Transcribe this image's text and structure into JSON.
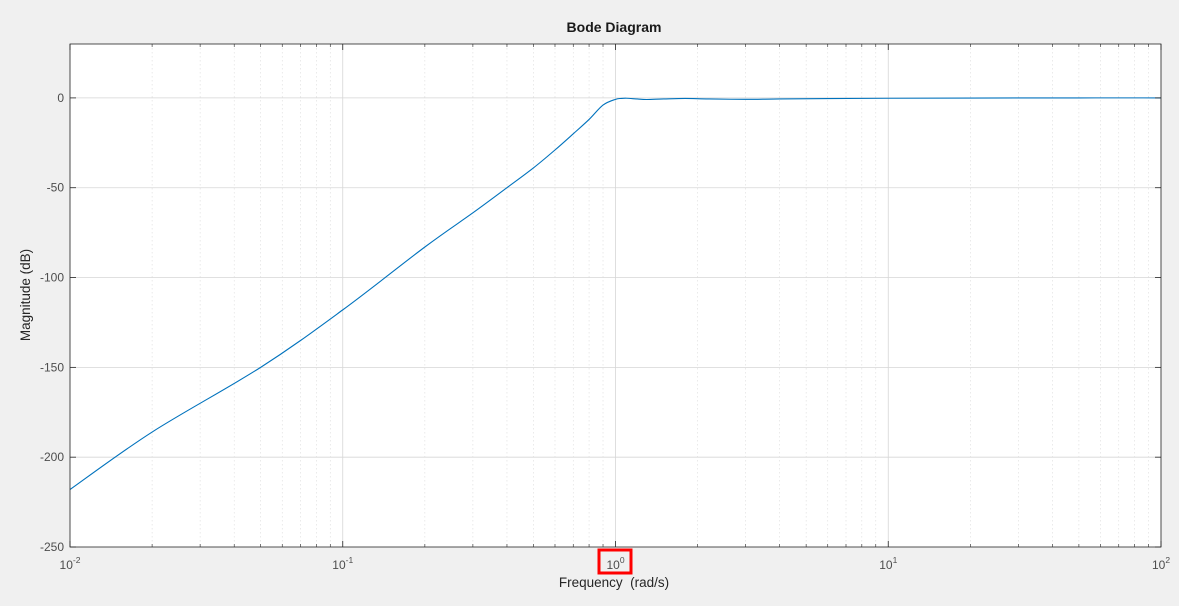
{
  "chart_data": {
    "type": "line",
    "title": "Bode Diagram",
    "xlabel": "Frequency  (rad/s)",
    "ylabel": "Magnitude (dB)",
    "xscale": "log",
    "xlim": [
      0.01,
      100
    ],
    "ylim": [
      -250,
      30
    ],
    "grid": true,
    "x_ticks": [
      {
        "value": 0.01,
        "base": "10",
        "exp": "-2"
      },
      {
        "value": 0.1,
        "base": "10",
        "exp": "-1"
      },
      {
        "value": 1,
        "base": "10",
        "exp": "0"
      },
      {
        "value": 10,
        "base": "10",
        "exp": "1"
      },
      {
        "value": 100,
        "base": "10",
        "exp": "2"
      }
    ],
    "y_ticks": [
      0,
      -50,
      -100,
      -150,
      -200,
      -250
    ],
    "y_tick_labels": [
      "0",
      "-50",
      "-100",
      "-150",
      "-200",
      "-250"
    ],
    "highlighted_tick": "10^0",
    "line_color": "#0072bd",
    "highlight_color": "#ff0000",
    "series": [
      {
        "x": [
          0.01,
          0.02,
          0.05,
          0.1,
          0.2,
          0.3,
          0.4,
          0.5,
          0.6,
          0.7,
          0.8,
          0.9,
          1.0,
          1.05,
          1.1,
          1.2,
          1.3,
          1.5,
          1.8,
          2.2,
          3,
          4,
          6,
          10,
          20,
          50,
          100
        ],
        "y": [
          -218,
          -186,
          -150,
          -118,
          -83,
          -64,
          -50,
          -39,
          -29,
          -20,
          -12,
          -4,
          -0.8,
          -0.3,
          -0.2,
          -0.6,
          -0.9,
          -0.6,
          -0.3,
          -0.6,
          -0.8,
          -0.6,
          -0.4,
          -0.2,
          -0.1,
          0,
          0
        ]
      }
    ]
  }
}
